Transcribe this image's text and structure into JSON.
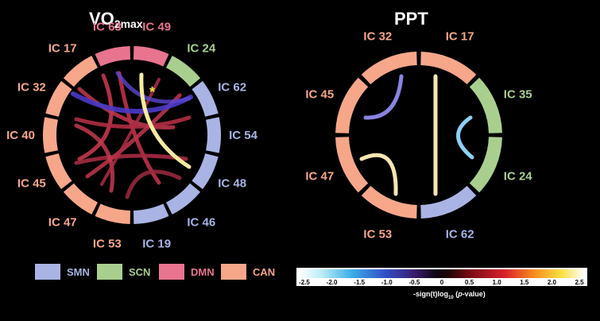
{
  "left_panel": {
    "title_main": "VO",
    "title_sub": "2max",
    "significance_marker": "*",
    "ring_labels": [
      "IC 63",
      "IC 49",
      "IC 24",
      "IC 62",
      "IC 54",
      "IC 48",
      "IC 46",
      "IC 19",
      "IC 53",
      "IC 47",
      "IC 45",
      "IC 40",
      "IC 32",
      "IC 17"
    ]
  },
  "right_panel": {
    "title": "PPT",
    "ring_labels": [
      "IC 32",
      "IC 17",
      "IC 35",
      "IC 24",
      "IC 62",
      "IC 53",
      "IC 47",
      "IC 45"
    ]
  },
  "network_legend": [
    {
      "label": "SMN",
      "color": "#a9b4e4"
    },
    {
      "label": "SCN",
      "color": "#a9cf8e"
    },
    {
      "label": "DMN",
      "color": "#e8748f"
    },
    {
      "label": "CAN",
      "color": "#f6a78a"
    }
  ],
  "colorbar": {
    "ticks": [
      "-2.5",
      "-2.0",
      "-1.5",
      "-1.0",
      "-0.5",
      "0",
      "0.5",
      "1.0",
      "1.5",
      "2.0",
      "2.5"
    ],
    "label_prefix": "-sign(t)log",
    "label_sub": "10",
    "label_open": " (",
    "label_italic": "p",
    "label_suffix": "-value)"
  },
  "colors": {
    "background": "#000000",
    "smn": "#a9b4e4",
    "scn": "#a9cf8e",
    "dmn": "#e8748f",
    "can": "#f6a78a",
    "star": "#f2e24a"
  }
}
